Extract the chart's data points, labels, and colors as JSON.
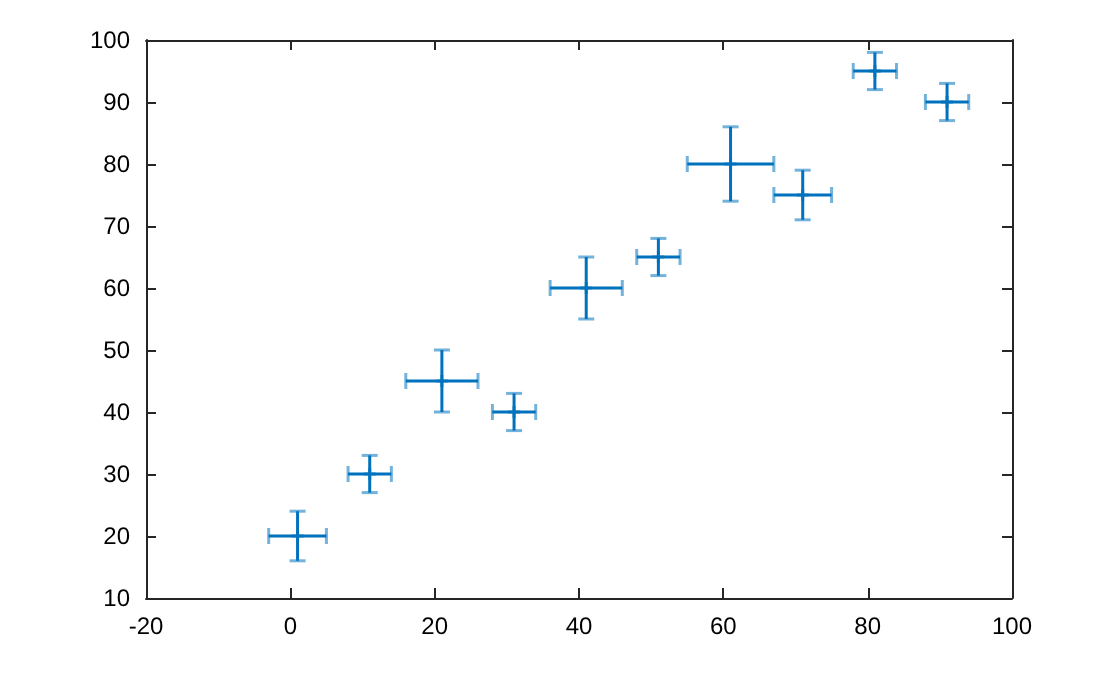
{
  "chart_data": {
    "type": "scatter",
    "x": [
      1,
      11,
      21,
      31,
      41,
      51,
      61,
      71,
      81,
      91
    ],
    "series": [
      {
        "color": "#0072bd",
        "values": [
          20,
          30,
          45,
          40,
          60,
          65,
          80,
          75,
          95,
          90
        ],
        "errors": [
          4,
          3,
          5,
          3,
          5,
          3,
          6,
          4,
          3,
          3
        ],
        "xerrors": [
          4,
          3,
          5,
          3,
          5,
          3,
          6,
          4,
          3,
          3
        ]
      }
    ],
    "marker": "cross",
    "grid": false,
    "xlim": [
      -20,
      100
    ],
    "xticks": [
      -20,
      0,
      20,
      40,
      60,
      80,
      100
    ],
    "ylim": [
      10,
      100
    ],
    "yticks": [
      10,
      20,
      30,
      40,
      50,
      60,
      70,
      80,
      90,
      100
    ]
  }
}
